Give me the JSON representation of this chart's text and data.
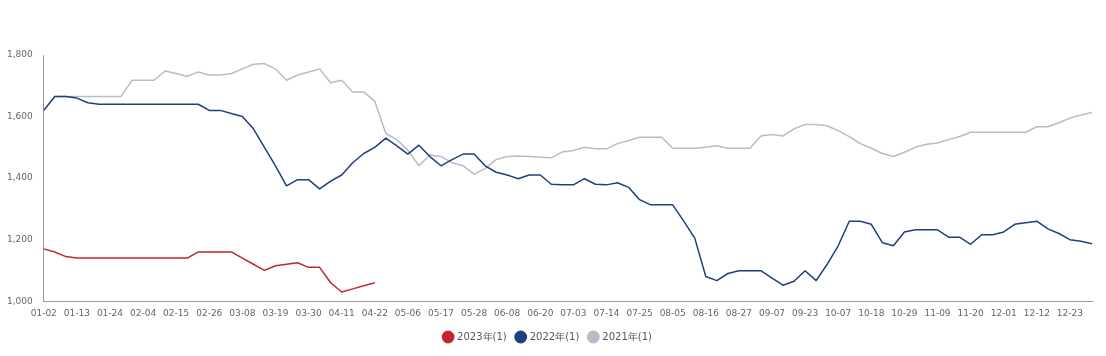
{
  "chart_data": {
    "type": "line",
    "categories": [
      "01-02",
      null,
      null,
      "01-13",
      null,
      null,
      "01-24",
      null,
      null,
      "02-04",
      null,
      null,
      "02-15",
      null,
      null,
      "02-26",
      null,
      null,
      "03-08",
      null,
      null,
      "03-19",
      null,
      null,
      "03-30",
      null,
      null,
      "04-11",
      null,
      null,
      "04-22",
      null,
      null,
      "05-06",
      null,
      null,
      "05-17",
      null,
      null,
      "05-28",
      null,
      null,
      "06-08",
      null,
      null,
      "06-20",
      null,
      null,
      "07-03",
      null,
      null,
      "07-14",
      null,
      null,
      "07-25",
      null,
      null,
      "08-05",
      null,
      null,
      "08-16",
      null,
      null,
      "08-27",
      null,
      null,
      "09-07",
      null,
      null,
      "09-23",
      null,
      null,
      "10-07",
      null,
      null,
      "10-18",
      null,
      null,
      "10-29",
      null,
      null,
      "11-09",
      null,
      null,
      "11-20",
      null,
      null,
      "12-01",
      null,
      null,
      "12-12",
      null,
      null,
      "12-23",
      null,
      null
    ],
    "series": [
      {
        "name": "2023年(1)",
        "color": "#c0282d",
        "values": [
          1170,
          1160,
          1145,
          1140,
          1140,
          1140,
          1140,
          1140,
          1140,
          1140,
          1140,
          1140,
          1140,
          1140,
          1160,
          1160,
          1160,
          1160,
          1140,
          1120,
          1100,
          1115,
          1120,
          1125,
          1110,
          1110,
          1060,
          1030,
          1040,
          1050,
          1060,
          null,
          null,
          null,
          null,
          null,
          null,
          null,
          null,
          null,
          null,
          null,
          null,
          null,
          null,
          null,
          null,
          null,
          null,
          null,
          null,
          null,
          null,
          null,
          null,
          null,
          null,
          null,
          null,
          null,
          null,
          null,
          null,
          null,
          null,
          null,
          null,
          null,
          null,
          null,
          null,
          null,
          null,
          null,
          null,
          null,
          null,
          null,
          null,
          null,
          null,
          null,
          null,
          null,
          null,
          null,
          null,
          null,
          null,
          null,
          null,
          null,
          null,
          null,
          null,
          null
        ]
      },
      {
        "name": "2022年(1)",
        "color": "#1f3f7f",
        "values": [
          1620,
          1665,
          1665,
          1660,
          1645,
          1640,
          1640,
          1640,
          1640,
          1640,
          1640,
          1640,
          1640,
          1640,
          1640,
          1620,
          1620,
          1610,
          1600,
          1560,
          1500,
          1440,
          1375,
          1395,
          1395,
          1365,
          1390,
          1410,
          1450,
          1480,
          1500,
          1530,
          1505,
          1478,
          1507,
          1470,
          1440,
          1460,
          1478,
          1478,
          1440,
          1419,
          1410,
          1398,
          1410,
          1410,
          1380,
          1378,
          1378,
          1398,
          1380,
          1378,
          1385,
          1370,
          1330,
          1313,
          1313,
          1313,
          1260,
          1205,
          1080,
          1067,
          1090,
          1099,
          1099,
          1099,
          1075,
          1052,
          1065,
          1099,
          1067,
          1120,
          1180,
          1260,
          1260,
          1250,
          1190,
          1180,
          1225,
          1232,
          1232,
          1232,
          1208,
          1208,
          1185,
          1216,
          1216,
          1225,
          1250,
          1255,
          1260,
          1235,
          1220,
          1200,
          1195,
          1187
        ]
      },
      {
        "name": "2021年(1)",
        "color": "#b8bcc8",
        "values": [
          1620,
          1665,
          1665,
          1665,
          1665,
          1665,
          1665,
          1665,
          1718,
          1718,
          1718,
          1748,
          1740,
          1730,
          1745,
          1735,
          1735,
          1740,
          1755,
          1770,
          1772,
          1755,
          1718,
          1735,
          1745,
          1755,
          1710,
          1718,
          1680,
          1680,
          1650,
          1545,
          1525,
          1490,
          1440,
          1475,
          1470,
          1450,
          1440,
          1413,
          1431,
          1460,
          1470,
          1472,
          1470,
          1468,
          1466,
          1485,
          1490,
          1500,
          1495,
          1495,
          1512,
          1522,
          1533,
          1533,
          1533,
          1497,
          1497,
          1497,
          1500,
          1505,
          1497,
          1497,
          1497,
          1537,
          1542,
          1537,
          1560,
          1574,
          1574,
          1570,
          1554,
          1535,
          1512,
          1497,
          1480,
          1470,
          1484,
          1500,
          1510,
          1514,
          1525,
          1535,
          1549,
          1549,
          1549,
          1549,
          1549,
          1549,
          1567,
          1567,
          1580,
          1595,
          1605,
          1613
        ]
      }
    ],
    "ylim": [
      1000,
      1800
    ],
    "yticks": [
      {
        "value": 1000,
        "label": "1,000"
      },
      {
        "value": 1200,
        "label": "1,200"
      },
      {
        "value": 1400,
        "label": "1,400"
      },
      {
        "value": 1600,
        "label": "1,600"
      },
      {
        "value": 1800,
        "label": "1,800"
      }
    ],
    "grid": false,
    "legend": "bottom",
    "marker": "none",
    "line_style": "solid"
  }
}
